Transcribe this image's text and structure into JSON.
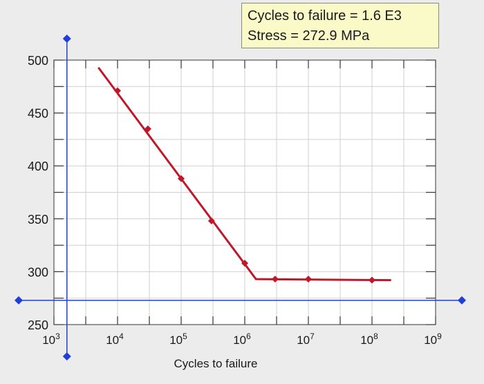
{
  "readout": {
    "cycles_text": "Cycles to failure = 1.6 E3",
    "stress_text": "Stress = 272.9 MPa"
  },
  "colors": {
    "curve": "#c0182a",
    "cursor": "#1f3fd8",
    "grid": "#cfcfcf",
    "plot_bg": "#ffffff",
    "axis": "#333333"
  },
  "cursor": {
    "x": 1600,
    "y": 272.9
  },
  "chart_data": {
    "type": "line",
    "x_scale": "log",
    "xlim": [
      1000,
      1000000000
    ],
    "ylim": [
      250,
      500
    ],
    "xlabel": "Cycles to failure",
    "ylabel": "",
    "x_ticks": [
      {
        "value": 1000,
        "base": "10",
        "exp": "3"
      },
      {
        "value": 10000,
        "base": "10",
        "exp": "4"
      },
      {
        "value": 100000,
        "base": "10",
        "exp": "5"
      },
      {
        "value": 1000000,
        "base": "10",
        "exp": "6"
      },
      {
        "value": 10000000,
        "base": "10",
        "exp": "7"
      },
      {
        "value": 100000000,
        "base": "10",
        "exp": "8"
      },
      {
        "value": 1000000000,
        "base": "10",
        "exp": "9"
      }
    ],
    "y_ticks": [
      250,
      300,
      350,
      400,
      450,
      500
    ],
    "grid": true,
    "series": [
      {
        "line": [
          {
            "x": 5000,
            "y": 493
          },
          {
            "x": 1500000,
            "y": 293
          },
          {
            "x": 200000000,
            "y": 292
          }
        ],
        "points": [
          {
            "x": 10000,
            "y": 471
          },
          {
            "x": 30000,
            "y": 435
          },
          {
            "x": 100000,
            "y": 388
          },
          {
            "x": 300000,
            "y": 348
          },
          {
            "x": 1000000,
            "y": 308
          },
          {
            "x": 3000000,
            "y": 293
          },
          {
            "x": 10000000,
            "y": 293
          },
          {
            "x": 100000000,
            "y": 292
          }
        ]
      }
    ]
  }
}
